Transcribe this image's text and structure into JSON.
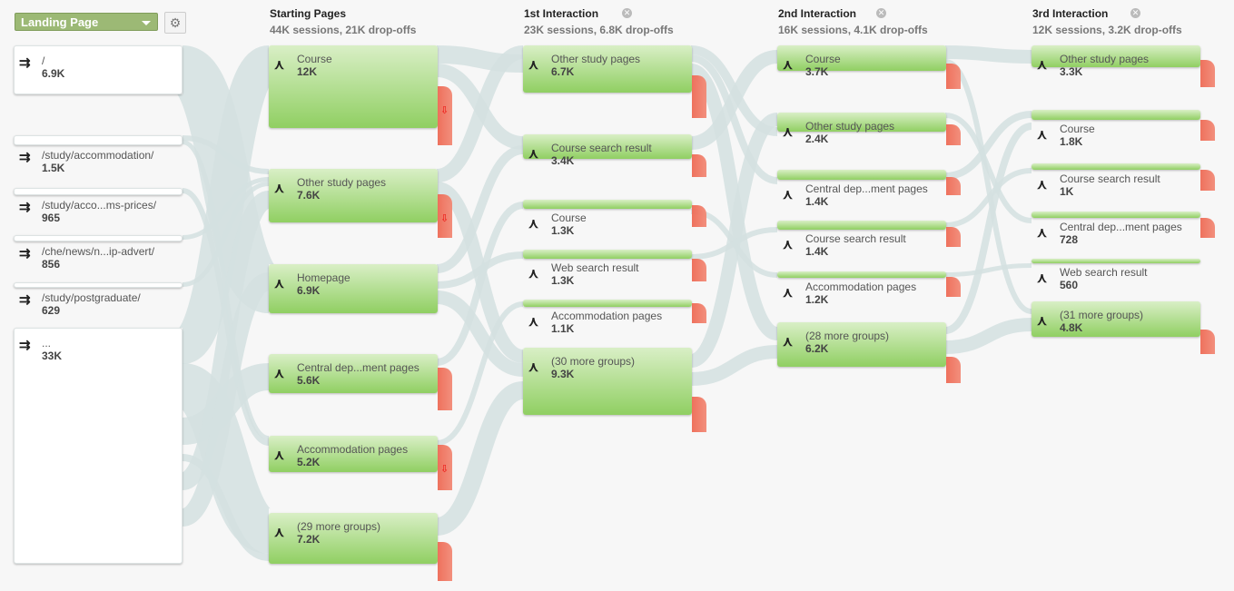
{
  "toolbar": {
    "dimension": "Landing Page",
    "settings_icon": "gear-icon"
  },
  "columns": [
    {
      "title": "Starting Pages",
      "stats": "44K sessions, 21K drop-offs"
    },
    {
      "title": "1st Interaction",
      "stats": "23K sessions, 6.8K drop-offs"
    },
    {
      "title": "2nd Interaction",
      "stats": "16K sessions, 4.1K drop-offs"
    },
    {
      "title": "3rd Interaction",
      "stats": "12K sessions, 3.2K drop-offs"
    }
  ],
  "landing": [
    {
      "label": "/",
      "value": "6.9K"
    },
    {
      "label": "/study/accommodation/",
      "value": "1.5K"
    },
    {
      "label": "/study/acco...ms-prices/",
      "value": "965"
    },
    {
      "label": "/che/news/n...ip-advert/",
      "value": "856"
    },
    {
      "label": "/study/postgraduate/",
      "value": "629"
    },
    {
      "label": "...",
      "value": "33K"
    }
  ],
  "stages": [
    [
      {
        "label": "Course",
        "value": "12K"
      },
      {
        "label": "Other study pages",
        "value": "7.6K"
      },
      {
        "label": "Homepage",
        "value": "6.9K"
      },
      {
        "label": "Central dep...ment pages",
        "value": "5.6K"
      },
      {
        "label": "Accommodation pages",
        "value": "5.2K"
      },
      {
        "label": "(29 more groups)",
        "value": "7.2K"
      }
    ],
    [
      {
        "label": "Other study pages",
        "value": "6.7K"
      },
      {
        "label": "Course search result",
        "value": "3.4K"
      },
      {
        "label": "Course",
        "value": "1.3K"
      },
      {
        "label": "Web search result",
        "value": "1.3K"
      },
      {
        "label": "Accommodation pages",
        "value": "1.1K"
      },
      {
        "label": "(30 more groups)",
        "value": "9.3K"
      }
    ],
    [
      {
        "label": "Course",
        "value": "3.7K"
      },
      {
        "label": "Other study pages",
        "value": "2.4K"
      },
      {
        "label": "Central dep...ment pages",
        "value": "1.4K"
      },
      {
        "label": "Course search result",
        "value": "1.4K"
      },
      {
        "label": "Accommodation pages",
        "value": "1.2K"
      },
      {
        "label": "(28 more groups)",
        "value": "6.2K"
      }
    ],
    [
      {
        "label": "Other study pages",
        "value": "3.3K"
      },
      {
        "label": "Course",
        "value": "1.8K"
      },
      {
        "label": "Course search result",
        "value": "1K"
      },
      {
        "label": "Central dep...ment pages",
        "value": "728"
      },
      {
        "label": "Web search result",
        "value": "560"
      },
      {
        "label": "(31 more groups)",
        "value": "4.8K"
      }
    ]
  ],
  "colors": {
    "node": "#90cf62",
    "dropoff": "#ee6a55",
    "link": "#d3e0e0",
    "dimension": "#9cb975"
  }
}
